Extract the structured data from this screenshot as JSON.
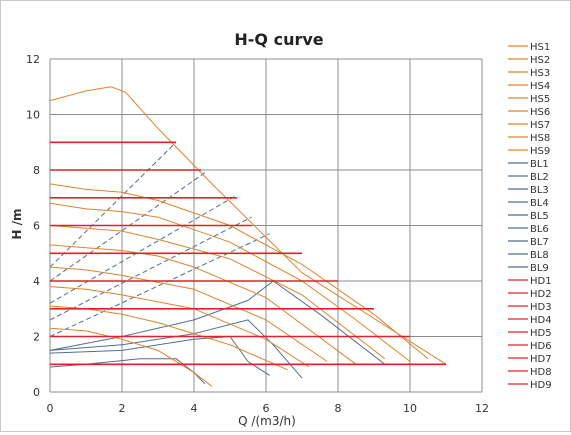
{
  "chart_data": {
    "type": "line",
    "title": "H-Q  curve",
    "xlabel": "Q /(m3/h)",
    "ylabel": "H /m",
    "xlim": [
      0,
      12
    ],
    "ylim": [
      0,
      12
    ],
    "xticks": [
      "0",
      "2",
      "4",
      "6",
      "8",
      "10",
      "12"
    ],
    "yticks": [
      "0",
      "2",
      "4",
      "6",
      "8",
      "10",
      "12"
    ],
    "grid": true,
    "legend_position": "right",
    "colors": {
      "HS": "#e0822f",
      "BL": "#4e6f94",
      "HD": "#e0202a",
      "envelope": "#e0822f",
      "grid": "#8c8c8c"
    },
    "series": [
      {
        "name": "HS1",
        "group": "HS",
        "x": [
          0,
          1.0,
          1.7,
          2.1,
          3.0,
          4.5,
          7.0,
          11.0
        ],
        "y": [
          10.5,
          10.85,
          11.0,
          10.8,
          9.5,
          7.5,
          4.3,
          1.0
        ]
      },
      {
        "name": "HS2",
        "group": "HS",
        "x": [
          0,
          1,
          2,
          3,
          5,
          7,
          9,
          10.5
        ],
        "y": [
          7.5,
          7.3,
          7.2,
          6.9,
          6.0,
          4.6,
          2.8,
          1.2
        ]
      },
      {
        "name": "HS3",
        "group": "HS",
        "x": [
          0,
          1,
          2,
          3,
          5,
          7,
          8.5,
          10
        ],
        "y": [
          6.8,
          6.6,
          6.5,
          6.3,
          5.4,
          4.0,
          2.6,
          1.1
        ]
      },
      {
        "name": "HS4",
        "group": "HS",
        "x": [
          0,
          1,
          2,
          3,
          5,
          7,
          9.3
        ],
        "y": [
          6.0,
          5.9,
          5.8,
          5.5,
          4.8,
          3.5,
          1.2
        ]
      },
      {
        "name": "HS5",
        "group": "HS",
        "x": [
          0,
          1,
          2,
          3,
          4,
          6,
          8.5
        ],
        "y": [
          5.3,
          5.2,
          5.1,
          4.9,
          4.5,
          3.4,
          1.0
        ]
      },
      {
        "name": "HS6",
        "group": "HS",
        "x": [
          0,
          1,
          2,
          4,
          6,
          7.7
        ],
        "y": [
          4.5,
          4.4,
          4.2,
          3.7,
          2.6,
          1.1
        ]
      },
      {
        "name": "HS7",
        "group": "HS",
        "x": [
          0,
          1,
          2,
          4,
          6,
          7.2
        ],
        "y": [
          3.8,
          3.7,
          3.5,
          3.0,
          1.9,
          0.9
        ]
      },
      {
        "name": "HS8",
        "group": "HS",
        "x": [
          0,
          1,
          2,
          3,
          5,
          6.6
        ],
        "y": [
          3.1,
          3.0,
          2.8,
          2.5,
          1.7,
          0.8
        ]
      },
      {
        "name": "HS9",
        "group": "HS",
        "x": [
          0,
          1,
          2,
          3,
          4,
          4.5
        ],
        "y": [
          2.3,
          2.2,
          1.9,
          1.5,
          0.7,
          0.2
        ]
      },
      {
        "name": "BL1",
        "group": "BL",
        "x": [
          0,
          3.5
        ],
        "y": [
          4.5,
          9.0
        ]
      },
      {
        "name": "BL2",
        "group": "BL",
        "x": [
          0,
          4.3
        ],
        "y": [
          4.0,
          7.9
        ]
      },
      {
        "name": "BL3",
        "group": "BL",
        "x": [
          0,
          5.2
        ],
        "y": [
          3.2,
          7.1
        ]
      },
      {
        "name": "BL4",
        "group": "BL",
        "x": [
          0,
          5.6
        ],
        "y": [
          2.6,
          6.3
        ]
      },
      {
        "name": "BL5",
        "group": "BL",
        "x": [
          0,
          6.1
        ],
        "y": [
          2.0,
          5.7
        ]
      },
      {
        "name": "BL6",
        "group": "BL",
        "x": [
          0,
          2,
          4,
          5.5,
          6.2,
          7.5,
          9.3
        ],
        "y": [
          1.5,
          2.0,
          2.6,
          3.3,
          4.0,
          2.8,
          1.0
        ]
      },
      {
        "name": "BL7",
        "group": "BL",
        "x": [
          0,
          2,
          4,
          5.5,
          6.2,
          7.0
        ],
        "y": [
          1.5,
          1.7,
          2.1,
          2.6,
          1.7,
          0.5
        ]
      },
      {
        "name": "BL8",
        "group": "BL",
        "x": [
          0,
          2,
          4,
          5.0,
          5.5,
          6.1
        ],
        "y": [
          1.4,
          1.5,
          1.9,
          2.0,
          1.1,
          0.6
        ]
      },
      {
        "name": "BL9",
        "group": "BL",
        "x": [
          0,
          1,
          2.5,
          3.5,
          4.0,
          4.3
        ],
        "y": [
          0.9,
          1.0,
          1.2,
          1.2,
          0.7,
          0.3
        ]
      },
      {
        "name": "HD1",
        "group": "HD",
        "x": [
          0,
          3.5
        ],
        "y": [
          9.0,
          9.0
        ]
      },
      {
        "name": "HD2",
        "group": "HD",
        "x": [
          0,
          4.2
        ],
        "y": [
          8.0,
          8.0
        ]
      },
      {
        "name": "HD3",
        "group": "HD",
        "x": [
          0,
          5.2
        ],
        "y": [
          7.0,
          7.0
        ]
      },
      {
        "name": "HD4",
        "group": "HD",
        "x": [
          0,
          5.6
        ],
        "y": [
          6.0,
          6.0
        ]
      },
      {
        "name": "HD5",
        "group": "HD",
        "x": [
          0,
          7.0
        ],
        "y": [
          5.0,
          5.0
        ]
      },
      {
        "name": "HD6",
        "group": "HD",
        "x": [
          0,
          8.0
        ],
        "y": [
          4.0,
          4.0
        ]
      },
      {
        "name": "HD7",
        "group": "HD",
        "x": [
          0,
          9.0
        ],
        "y": [
          3.0,
          3.0
        ]
      },
      {
        "name": "HD8",
        "group": "HD",
        "x": [
          0,
          10.0
        ],
        "y": [
          2.0,
          2.0
        ]
      },
      {
        "name": "HD9",
        "group": "HD",
        "x": [
          0,
          11.0
        ],
        "y": [
          1.0,
          1.0
        ]
      }
    ]
  }
}
